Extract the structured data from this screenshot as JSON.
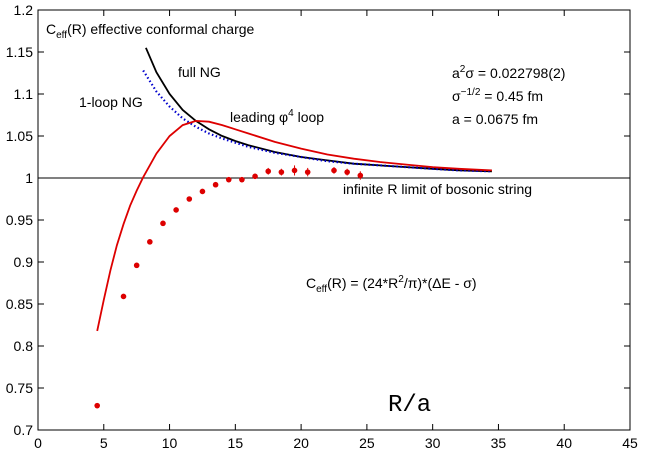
{
  "chart_data": {
    "type": "line",
    "xlabel": "R/a",
    "ylabel": "",
    "xlim": [
      0,
      45
    ],
    "ylim": [
      0.7,
      1.2
    ],
    "xticks": [
      "0",
      "5",
      "10",
      "15",
      "20",
      "25",
      "30",
      "35",
      "40",
      "45"
    ],
    "yticks": [
      "0.7",
      "0.75",
      "0.8",
      "0.85",
      "0.9",
      "0.95",
      "1",
      "1.05",
      "1.1",
      "1.15",
      "1.2"
    ],
    "grid": false,
    "reference_line": {
      "y": 1,
      "label": "infinite R limit of bosonic string"
    },
    "title_parts": {
      "base": "C",
      "sub": "eff",
      "rest": "(R)  effective conformal charge"
    },
    "parameters": {
      "line1": {
        "a": "a",
        "sup": "2",
        "b": "σ = 0.022798(2)"
      },
      "line2": {
        "a": "σ",
        "sup": "−1/2",
        "b": " = 0.45 fm"
      },
      "line3": "a = 0.0675 fm"
    },
    "formula": {
      "base": "C",
      "sub": "eff",
      "a": "(R) = (24*R",
      "sup": "2",
      "b": "/π)*(ΔE - σ)"
    },
    "series_labels": {
      "full_ng": "full NG",
      "one_loop": "1-loop NG",
      "phi4": {
        "a": "leading φ",
        "sup": "4",
        "b": " loop"
      }
    },
    "series": [
      {
        "name": "full NG",
        "color": "#000000",
        "style": "solid",
        "x": [
          8.2,
          9,
          10,
          11,
          12,
          13,
          14,
          15,
          16,
          17,
          18,
          20,
          22,
          24,
          26,
          28,
          30,
          32,
          34.5
        ],
        "y": [
          1.155,
          1.126,
          1.1,
          1.081,
          1.068,
          1.058,
          1.05,
          1.044,
          1.039,
          1.035,
          1.031,
          1.025,
          1.021,
          1.017,
          1.015,
          1.013,
          1.011,
          1.009,
          1.008
        ]
      },
      {
        "name": "1-loop NG",
        "color": "#0000cc",
        "style": "dotted",
        "x": [
          8.0,
          9,
          10,
          11,
          12,
          13,
          14,
          16,
          18,
          20,
          22,
          24,
          26,
          28,
          30,
          32,
          34.5
        ],
        "y": [
          1.128,
          1.103,
          1.085,
          1.071,
          1.061,
          1.053,
          1.047,
          1.037,
          1.03,
          1.025,
          1.02,
          1.017,
          1.015,
          1.013,
          1.011,
          1.009,
          1.008
        ]
      },
      {
        "name": "leading φ4 loop",
        "color": "#dd0000",
        "style": "solid",
        "x": [
          4.5,
          5,
          5.5,
          6,
          6.5,
          7,
          7.5,
          8,
          9,
          10,
          11,
          12,
          13,
          14,
          15,
          16,
          18,
          20,
          22,
          24,
          26,
          28,
          30,
          32,
          34.5
        ],
        "y": [
          0.818,
          0.855,
          0.89,
          0.92,
          0.945,
          0.967,
          0.985,
          1.001,
          1.029,
          1.05,
          1.063,
          1.068,
          1.067,
          1.063,
          1.058,
          1.053,
          1.043,
          1.035,
          1.028,
          1.023,
          1.019,
          1.016,
          1.013,
          1.011,
          1.009
        ]
      },
      {
        "name": "data",
        "color": "#dd0000",
        "style": "points",
        "x": [
          4.5,
          6.5,
          7.5,
          8.5,
          9.5,
          10.5,
          11.5,
          12.5,
          13.5,
          14.5,
          15.5,
          16.5,
          17.5,
          18.5,
          19.5,
          20.5,
          22.5,
          23.5,
          24.5
        ],
        "y": [
          0.729,
          0.859,
          0.896,
          0.924,
          0.946,
          0.962,
          0.975,
          0.984,
          0.992,
          0.998,
          0.998,
          1.002,
          1.008,
          1.007,
          1.009,
          1.007,
          1.009,
          1.007,
          1.003
        ],
        "err": [
          0,
          0,
          0,
          0,
          0,
          0,
          0,
          0,
          0,
          0.003,
          0.003,
          0.003,
          0.004,
          0.004,
          0.006,
          0.005,
          0.004,
          0.004,
          0.005
        ]
      }
    ]
  }
}
